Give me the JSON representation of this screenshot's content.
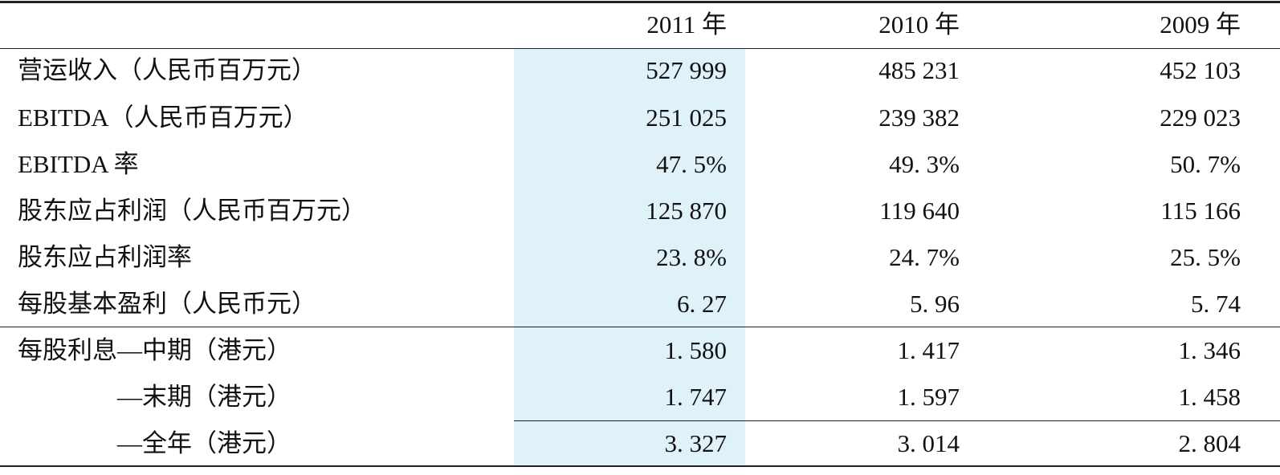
{
  "table": {
    "header": [
      "2011 年",
      "2010 年",
      "2009 年"
    ],
    "rows": [
      [
        "营运收入（人民币百万元）",
        "527 999",
        "485 231",
        "452 103"
      ],
      [
        "EBITDA（人民币百万元）",
        "251 025",
        "239 382",
        "229 023"
      ],
      [
        "EBITDA 率",
        "47. 5%",
        "49. 3%",
        "50. 7%"
      ],
      [
        "股东应占利润（人民币百万元）",
        "125 870",
        "119 640",
        "115 166"
      ],
      [
        "股东应占利润率",
        "23. 8%",
        "24. 7%",
        "25. 5%"
      ],
      [
        "每股基本盈利（人民币元）",
        "6. 27",
        "5. 96",
        "5. 74"
      ],
      [
        "每股利息—中期（港元）",
        "1. 580",
        "1. 417",
        "1. 346"
      ],
      [
        "—末期（港元）",
        "1. 747",
        "1. 597",
        "1. 458"
      ],
      [
        "—全年（港元）",
        "3. 327",
        "3. 014",
        "2. 804"
      ]
    ]
  }
}
